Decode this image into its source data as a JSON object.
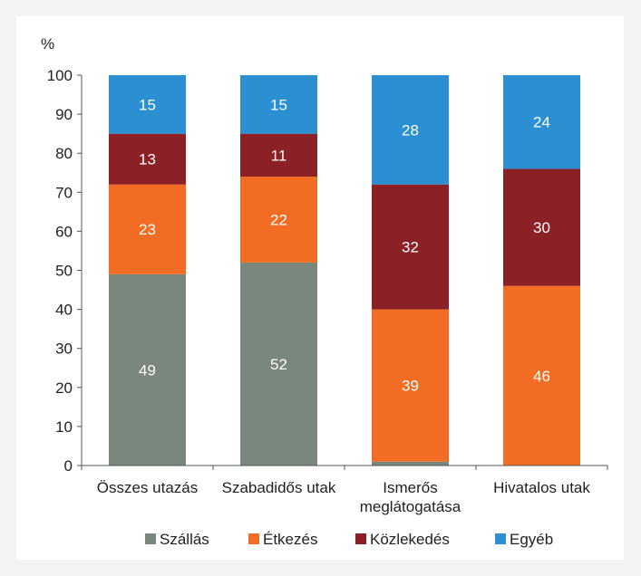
{
  "chart_data": {
    "type": "bar",
    "stacked": true,
    "ylabel": "%",
    "ylim": [
      0,
      100
    ],
    "yticks": [
      0,
      10,
      20,
      30,
      40,
      50,
      60,
      70,
      80,
      90,
      100
    ],
    "categories": [
      [
        "Összes utazás"
      ],
      [
        "Szabadidős utak"
      ],
      [
        "Ismerős",
        "meglátogatása"
      ],
      [
        "Hivatalos utak"
      ]
    ],
    "series": [
      {
        "name": "Szállás",
        "color": "#7a877d",
        "values": [
          49,
          52,
          1,
          0
        ],
        "labels": [
          "49",
          "52",
          "",
          ""
        ]
      },
      {
        "name": "Étkezés",
        "color": "#f26d23",
        "values": [
          23,
          22,
          39,
          46
        ],
        "labels": [
          "23",
          "22",
          "39",
          "46"
        ]
      },
      {
        "name": "Közlekedés",
        "color": "#8b2027",
        "values": [
          13,
          11,
          32,
          30
        ],
        "labels": [
          "13",
          "11",
          "32",
          "30"
        ]
      },
      {
        "name": "Egyéb",
        "color": "#2b8fd1",
        "values": [
          15,
          15,
          28,
          24
        ],
        "labels": [
          "15",
          "15",
          "28",
          "24"
        ]
      }
    ],
    "grid": false,
    "legend_position": "bottom"
  }
}
